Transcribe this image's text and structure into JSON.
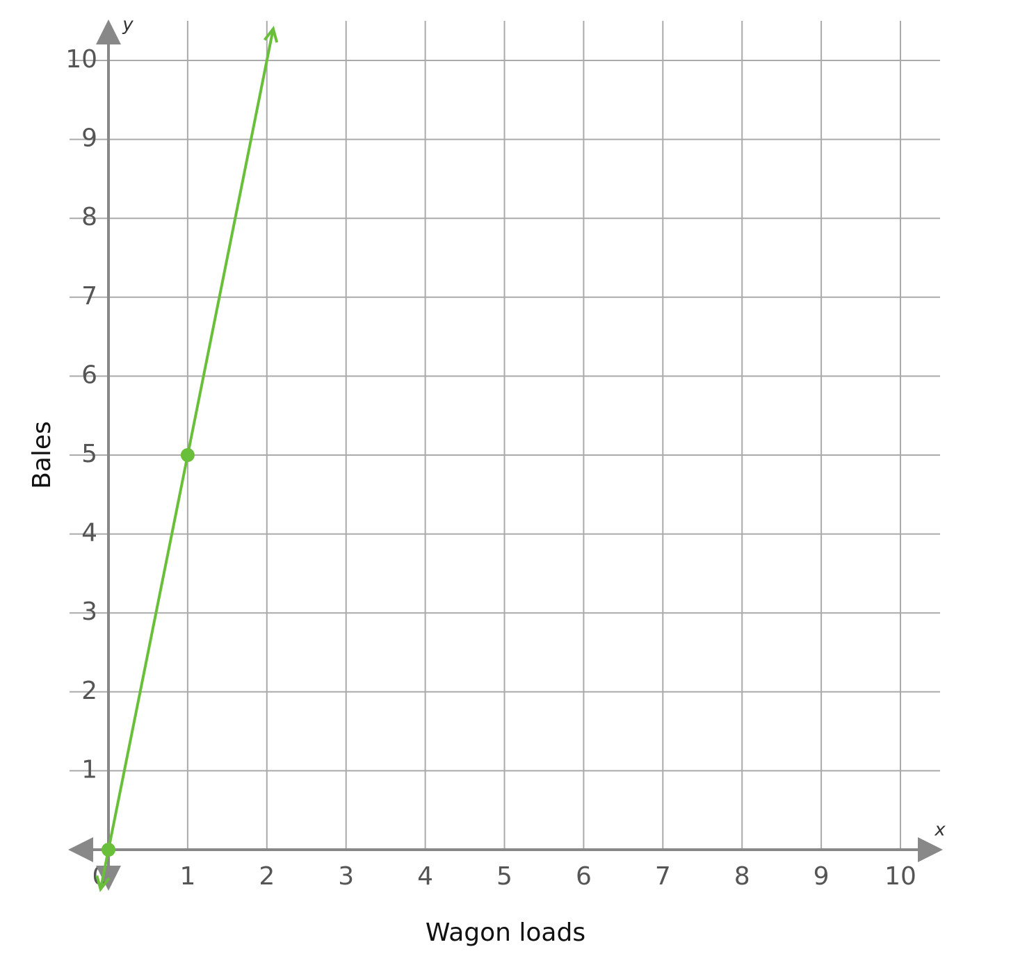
{
  "chart_data": {
    "type": "line",
    "x_axis_label": "Wagon loads",
    "y_axis_label": "Bales",
    "x_axis_letter": "x",
    "y_axis_letter": "y",
    "x": [
      0,
      1
    ],
    "series": [
      {
        "color": "#6abf3a",
        "values": [
          0,
          5
        ]
      }
    ],
    "xlim": [
      0,
      10
    ],
    "ylim": [
      0,
      10
    ],
    "xticks": [
      0,
      1,
      2,
      3,
      4,
      5,
      6,
      7,
      8,
      9,
      10
    ],
    "yticks": [
      1,
      2,
      3,
      4,
      5,
      6,
      7,
      8,
      9,
      10
    ],
    "grid": true
  }
}
